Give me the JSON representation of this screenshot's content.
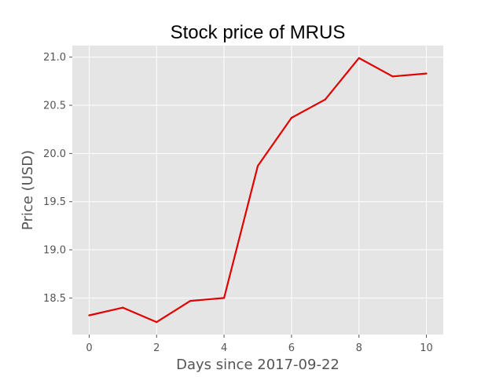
{
  "chart_data": {
    "type": "line",
    "title": "Stock price of MRUS",
    "xlabel": "Days since 2017-09-22",
    "ylabel": "Price (USD)",
    "x": [
      0,
      1,
      2,
      3,
      4,
      5,
      6,
      7,
      8,
      9,
      10
    ],
    "series": [
      {
        "values": [
          18.32,
          18.4,
          18.25,
          18.47,
          18.5,
          19.87,
          20.37,
          20.56,
          20.99,
          20.8,
          20.83
        ],
        "color": "#e00000"
      }
    ],
    "xticks": [
      "0",
      "2",
      "4",
      "6",
      "8",
      "10"
    ],
    "yticks": [
      "18.5",
      "19.0",
      "19.5",
      "20.0",
      "20.5",
      "21.0"
    ],
    "xlim": [
      -0.5,
      10.5
    ],
    "ylim": [
      18.12,
      21.12
    ],
    "grid": true,
    "style": "ggplot",
    "colors": {
      "plot_background": "#e5e5e5",
      "grid": "#ffffff",
      "text": "#555555"
    }
  }
}
